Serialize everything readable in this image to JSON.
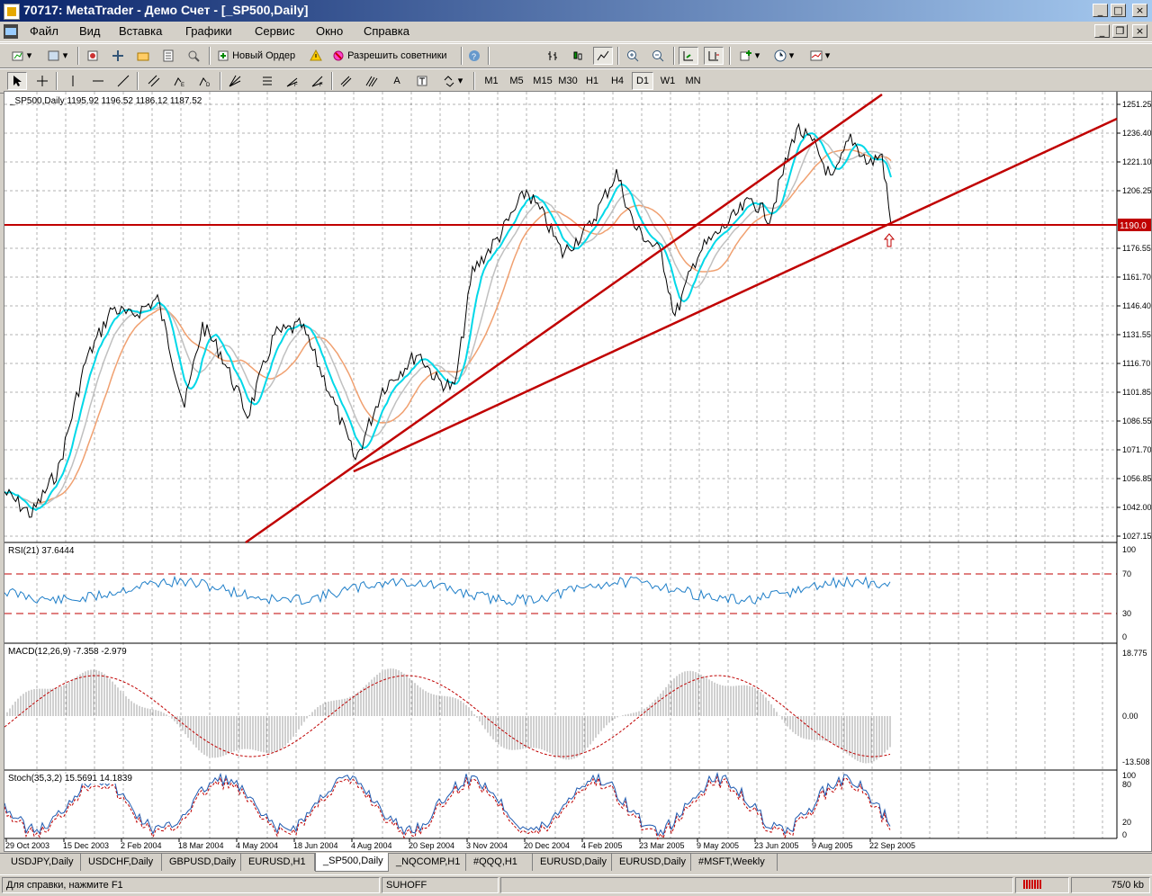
{
  "window": {
    "title": "70717: MetaTrader - Демо Счет - [_SP500,Daily]"
  },
  "menu": [
    "Файл",
    "Вид",
    "Вставка",
    "Графики",
    "Сервис",
    "Окно",
    "Справка"
  ],
  "toolbar1": {
    "new_order": "Новый Ордер",
    "experts": "Разрешить советники"
  },
  "toolbar2": {
    "text_tool": "A",
    "timeframes": [
      "M1",
      "M5",
      "M15",
      "M30",
      "H1",
      "H4",
      "D1",
      "W1",
      "MN"
    ],
    "active_timeframe": "D1"
  },
  "chart": {
    "header": "_SP500,Daily  1195.92 1196.52 1186.12 1187.52",
    "price_labels": [
      "1251.25",
      "1236.40",
      "1221.10",
      "1206.25",
      "1176.55",
      "1161.70",
      "1146.40",
      "1131.55",
      "1116.70",
      "1101.85",
      "1086.55",
      "1071.70",
      "1056.85",
      "1042.00",
      "1027.15"
    ],
    "current_price": "1190.0",
    "dates": [
      "29 Oct 2003",
      "15 Dec 2003",
      "2 Feb 2004",
      "18 Mar 2004",
      "4 May 2004",
      "18 Jun 2004",
      "4 Aug 2004",
      "20 Sep 2004",
      "3 Nov 2004",
      "20 Dec 2004",
      "4 Feb 2005",
      "23 Mar 2005",
      "9 May 2005",
      "23 Jun 2005",
      "9 Aug 2005",
      "22 Sep 2005"
    ],
    "colors": {
      "price": "#000000",
      "ma_fast": "#00d8e8",
      "ma_mid": "#c0c0c0",
      "ma_slow": "#f0a070",
      "trend": "#c00000"
    }
  },
  "rsi": {
    "label": "RSI(21) 37.6444",
    "levels": [
      "100",
      "70",
      "30",
      "0"
    ]
  },
  "macd": {
    "label": "MACD(12,26,9) -7.358 -2.979",
    "levels": [
      "18.775",
      "0.00",
      "-13.508"
    ]
  },
  "stoch": {
    "label": "Stoch(35,3,2) 15.5691 14.1839",
    "levels": [
      "100",
      "80",
      "20",
      "0"
    ]
  },
  "tabs": [
    "USDJPY,Daily",
    "USDCHF,Daily",
    "GBPUSD,Daily",
    "EURUSD,H1",
    "_SP500,Daily",
    "_NQCOMP,H1",
    "#QQQ,H1",
    "EURUSD,Daily",
    "EURUSD,Daily",
    "#MSFT,Weekly"
  ],
  "active_tab": "_SP500,Daily",
  "status": {
    "help": "Для справки, нажмите F1",
    "profile": "SUHOFF",
    "traffic": "75/0 kb"
  }
}
